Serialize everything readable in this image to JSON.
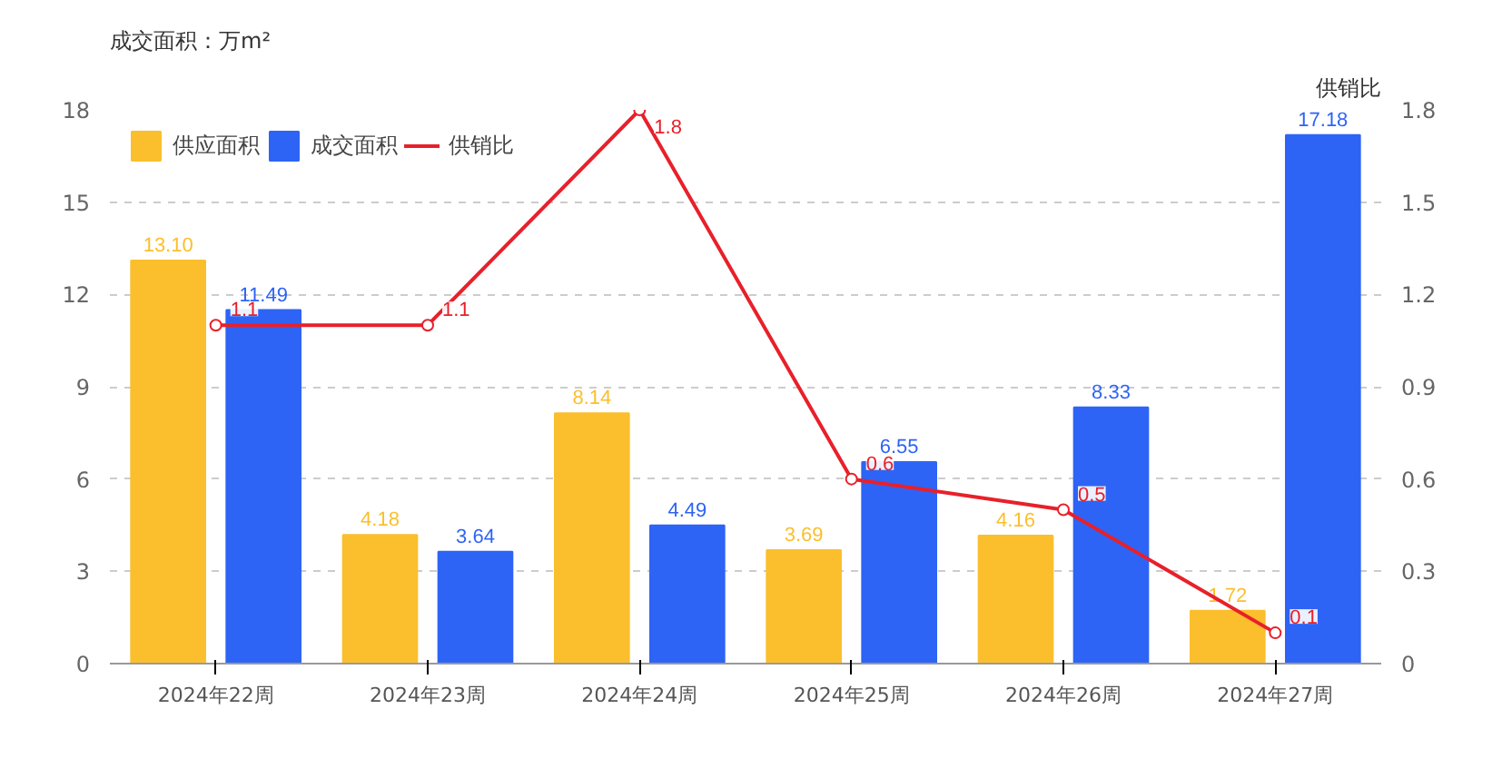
{
  "chart_data": {
    "type": "bar",
    "ylabel": "成交面积：万m²",
    "y2label": "供销比",
    "categories": [
      "2024年22周",
      "2024年23周",
      "2024年24周",
      "2024年25周",
      "2024年26周",
      "2024年27周"
    ],
    "series": [
      {
        "name": "供应面积",
        "color": "#fbbf2d",
        "values": [
          13.1,
          4.18,
          8.14,
          3.69,
          4.16,
          1.72
        ],
        "value_labels": [
          "13.10",
          "4.18",
          "8.14",
          "3.69",
          "4.16",
          "1.72"
        ]
      },
      {
        "name": "成交面积",
        "color": "#2e64f5",
        "values": [
          11.49,
          3.64,
          4.49,
          6.55,
          8.33,
          17.18
        ],
        "value_labels": [
          "11.49",
          "3.64",
          "4.49",
          "6.55",
          "8.33",
          "17.18"
        ]
      },
      {
        "name": "供销比",
        "type": "line",
        "axis": "y2",
        "color": "#e8202a",
        "marker": "circle",
        "line_style": "solid",
        "values": [
          1.1,
          1.1,
          1.8,
          0.6,
          0.5,
          0.1
        ],
        "value_labels": [
          "1.1",
          "1.1",
          "1.8",
          "0.6",
          "0.5",
          "0.1"
        ]
      }
    ],
    "ylim": [
      0,
      18
    ],
    "yticks": [
      0,
      3,
      6,
      9,
      12,
      15,
      18
    ],
    "y2lim": [
      0,
      1.8
    ],
    "y2ticks": [
      0,
      0.3,
      0.6,
      0.9,
      1.2,
      1.5,
      1.8
    ],
    "grid": "y",
    "legend": "top left"
  }
}
